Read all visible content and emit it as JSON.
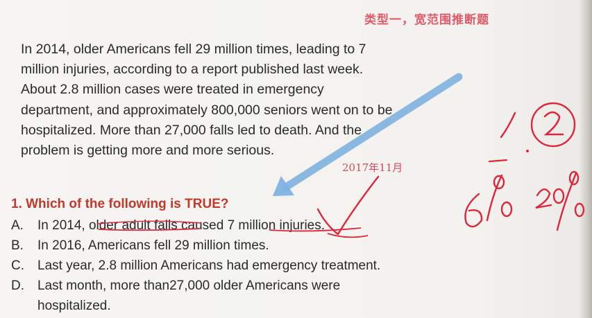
{
  "header": {
    "section_title": "类型一，宽范围推断题"
  },
  "passage": {
    "lines": [
      "In 2014, older Americans fell 29 million times, leading to 7",
      "million injuries, according to a report published last week.",
      "About 2.8 million cases were treated in emergency",
      "department, and approximately 800,000 seniors went on to be",
      "hospitalized. More than 27,000 falls led to death. And the",
      "problem is getting more and more serious."
    ]
  },
  "annotations": {
    "date_note": "2017年11月",
    "handwritten_marks": [
      "1",
      "2",
      "6%",
      "20%"
    ]
  },
  "question": {
    "prompt": "1. Which of the following is TRUE?",
    "options": [
      {
        "letter": "A.",
        "text": "In 2014, older adult falls caused 7 million injuries."
      },
      {
        "letter": "B.",
        "text": "In 2016, Americans fell 29 million times."
      },
      {
        "letter": "C.",
        "text": "Last year, 2.8 million Americans had emergency treatment."
      },
      {
        "letter": "D.",
        "text": "Last month, more than27,000 older Americans were",
        "continuation": "hospitalized."
      }
    ]
  },
  "colors": {
    "background": "#f4f3f1",
    "body_text": "#2a2a2a",
    "question_red": "#c0392b",
    "ink_red": "#e0243a",
    "arrow_blue": "#7fb2e0"
  }
}
